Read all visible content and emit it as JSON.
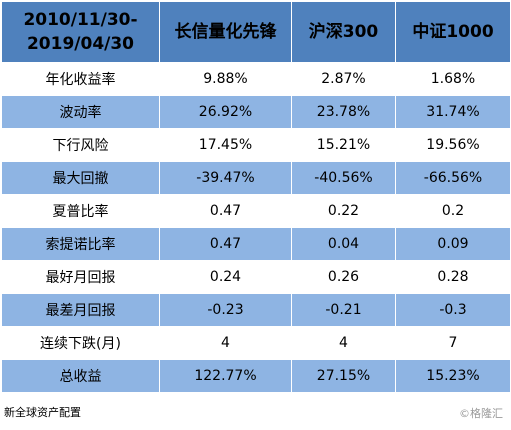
{
  "table": {
    "header": {
      "period_line1": "2010/11/30-",
      "period_line2": "2019/04/30",
      "columns": [
        "长信量化先锋",
        "沪深300",
        "中证1000"
      ]
    },
    "rows": [
      {
        "label": "年化收益率",
        "values": [
          "9.88%",
          "2.87%",
          "1.68%"
        ]
      },
      {
        "label": "波动率",
        "values": [
          "26.92%",
          "23.78%",
          "31.74%"
        ]
      },
      {
        "label": "下行风险",
        "values": [
          "17.45%",
          "15.21%",
          "19.56%"
        ]
      },
      {
        "label": "最大回撤",
        "values": [
          "-39.47%",
          "-40.56%",
          "-66.56%"
        ]
      },
      {
        "label": "夏普比率",
        "values": [
          "0.47",
          "0.22",
          "0.2"
        ]
      },
      {
        "label": "索提诺比率",
        "values": [
          "0.47",
          "0.04",
          "0.09"
        ]
      },
      {
        "label": "最好月回报",
        "values": [
          "0.24",
          "0.26",
          "0.28"
        ]
      },
      {
        "label": "最差月回报",
        "values": [
          "-0.23",
          "-0.21",
          "-0.3"
        ]
      },
      {
        "label": "连续下跌(月)",
        "values": [
          "4",
          "4",
          "7"
        ]
      },
      {
        "label": "总收益",
        "values": [
          "122.77%",
          "27.15%",
          "15.23%"
        ]
      }
    ],
    "colors": {
      "header": "#4f81bd",
      "stripe": "#8eb4e3",
      "plain": "#ffffff"
    }
  },
  "footer": {
    "source": "新全球资产配置",
    "watermark": "©格隆汇"
  }
}
